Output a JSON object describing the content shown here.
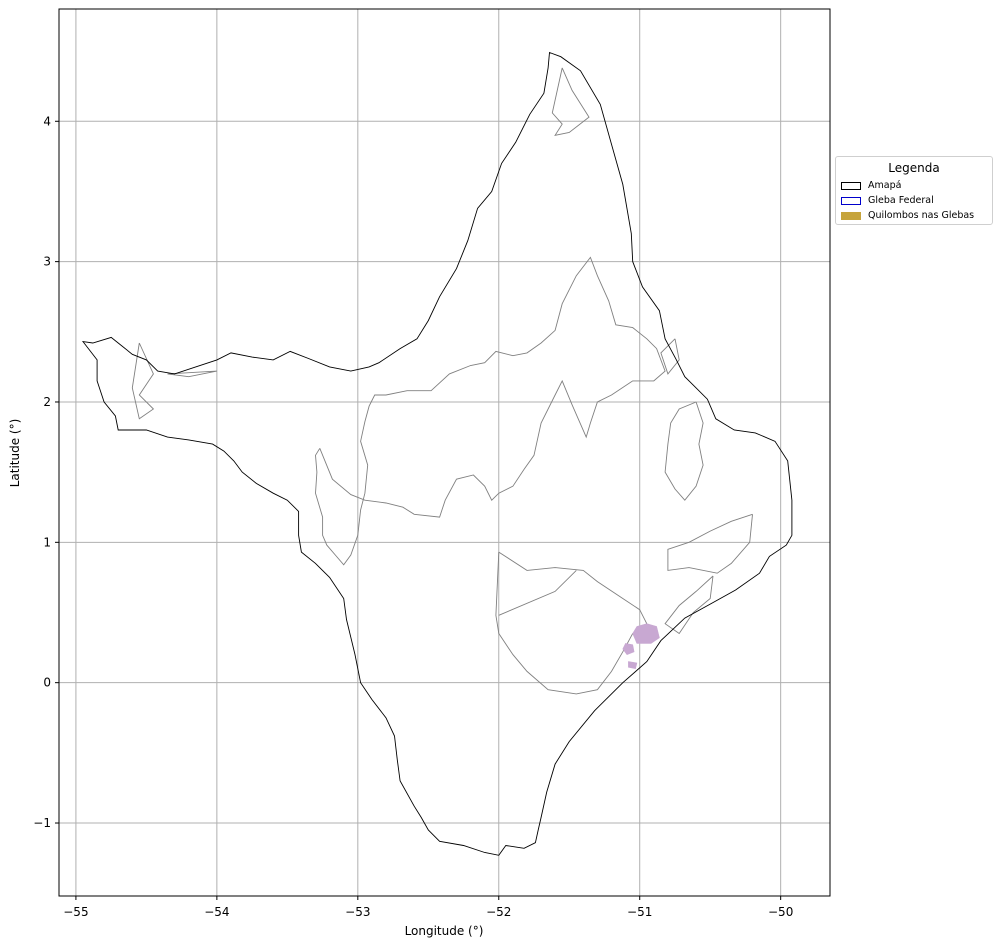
{
  "chart_data": {
    "type": "map",
    "xlabel": "Longitude (°)",
    "ylabel": "Latitude (°)",
    "xlim": [
      -55.12,
      -49.65
    ],
    "ylim": [
      -1.52,
      4.8
    ],
    "xticks": [
      -55,
      -54,
      -53,
      -52,
      -51,
      -50
    ],
    "xtick_labels": [
      "−55",
      "−54",
      "−53",
      "−52",
      "−51",
      "−50"
    ],
    "yticks": [
      -1,
      0,
      1,
      2,
      3,
      4
    ],
    "ytick_labels": [
      "−1",
      "0",
      "1",
      "2",
      "3",
      "4"
    ],
    "grid": true,
    "legend": {
      "title": "Legenda",
      "placement": "right, outside plot",
      "entries": [
        {
          "label": "Amapá",
          "edge": "#000000",
          "fill": "#ffffff"
        },
        {
          "label": "Gleba Federal",
          "edge": "#0000cc",
          "fill": "#ffffff"
        },
        {
          "label": "Quilombos nas Glebas",
          "edge": "#c6a43c",
          "fill": "#c6a43c"
        }
      ]
    },
    "colors": {
      "state_outline": "#000000",
      "gleba_outline": "#808080",
      "quilombo_fill": "#c8a8d2",
      "grid": "#b0b0b0"
    },
    "layers": {
      "amapa_outline": [
        [
          -51.64,
          4.49
        ],
        [
          -51.56,
          4.46
        ],
        [
          -51.42,
          4.36
        ],
        [
          -51.28,
          4.12
        ],
        [
          -51.19,
          3.8
        ],
        [
          -51.12,
          3.55
        ],
        [
          -51.06,
          3.2
        ],
        [
          -51.05,
          3.0
        ],
        [
          -50.98,
          2.82
        ],
        [
          -50.86,
          2.65
        ],
        [
          -50.82,
          2.45
        ],
        [
          -50.74,
          2.3
        ],
        [
          -50.68,
          2.18
        ],
        [
          -50.6,
          2.1
        ],
        [
          -50.52,
          2.02
        ],
        [
          -50.46,
          1.88
        ],
        [
          -50.33,
          1.8
        ],
        [
          -50.18,
          1.78
        ],
        [
          -50.04,
          1.72
        ],
        [
          -49.95,
          1.58
        ],
        [
          -49.92,
          1.3
        ],
        [
          -49.92,
          1.05
        ],
        [
          -49.96,
          0.98
        ],
        [
          -50.08,
          0.9
        ],
        [
          -50.15,
          0.78
        ],
        [
          -50.32,
          0.66
        ],
        [
          -50.5,
          0.56
        ],
        [
          -50.68,
          0.46
        ],
        [
          -50.85,
          0.3
        ],
        [
          -50.95,
          0.15
        ],
        [
          -51.12,
          0.0
        ],
        [
          -51.32,
          -0.2
        ],
        [
          -51.5,
          -0.42
        ],
        [
          -51.6,
          -0.58
        ],
        [
          -51.66,
          -0.78
        ],
        [
          -51.7,
          -0.96
        ],
        [
          -51.72,
          -1.05
        ],
        [
          -51.74,
          -1.14
        ],
        [
          -51.82,
          -1.18
        ],
        [
          -51.95,
          -1.16
        ],
        [
          -52.0,
          -1.23
        ],
        [
          -52.1,
          -1.21
        ],
        [
          -52.25,
          -1.16
        ],
        [
          -52.42,
          -1.13
        ],
        [
          -52.5,
          -1.05
        ],
        [
          -52.55,
          -0.96
        ],
        [
          -52.6,
          -0.88
        ],
        [
          -52.7,
          -0.7
        ],
        [
          -52.72,
          -0.55
        ],
        [
          -52.74,
          -0.38
        ],
        [
          -52.8,
          -0.25
        ],
        [
          -52.9,
          -0.12
        ],
        [
          -52.98,
          0.0
        ],
        [
          -53.02,
          0.2
        ],
        [
          -53.08,
          0.45
        ],
        [
          -53.1,
          0.6
        ],
        [
          -53.2,
          0.75
        ],
        [
          -53.3,
          0.85
        ],
        [
          -53.4,
          0.93
        ],
        [
          -53.42,
          1.05
        ],
        [
          -53.42,
          1.22
        ],
        [
          -53.5,
          1.3
        ],
        [
          -53.6,
          1.35
        ],
        [
          -53.72,
          1.42
        ],
        [
          -53.82,
          1.5
        ],
        [
          -53.88,
          1.58
        ],
        [
          -53.95,
          1.65
        ],
        [
          -54.03,
          1.7
        ],
        [
          -54.2,
          1.73
        ],
        [
          -54.35,
          1.75
        ],
        [
          -54.5,
          1.8
        ],
        [
          -54.7,
          1.8
        ],
        [
          -54.72,
          1.9
        ],
        [
          -54.8,
          2.0
        ],
        [
          -54.85,
          2.15
        ],
        [
          -54.85,
          2.3
        ],
        [
          -54.95,
          2.43
        ],
        [
          -54.88,
          2.42
        ],
        [
          -54.75,
          2.46
        ],
        [
          -54.7,
          2.42
        ],
        [
          -54.6,
          2.34
        ],
        [
          -54.5,
          2.3
        ],
        [
          -54.42,
          2.22
        ],
        [
          -54.3,
          2.2
        ],
        [
          -54.15,
          2.25
        ],
        [
          -54.0,
          2.3
        ],
        [
          -53.9,
          2.35
        ],
        [
          -53.75,
          2.32
        ],
        [
          -53.6,
          2.3
        ],
        [
          -53.48,
          2.36
        ],
        [
          -53.35,
          2.31
        ],
        [
          -53.2,
          2.25
        ],
        [
          -53.05,
          2.22
        ],
        [
          -52.92,
          2.25
        ],
        [
          -52.85,
          2.28
        ],
        [
          -52.7,
          2.38
        ],
        [
          -52.58,
          2.45
        ],
        [
          -52.5,
          2.58
        ],
        [
          -52.42,
          2.75
        ],
        [
          -52.3,
          2.95
        ],
        [
          -52.22,
          3.15
        ],
        [
          -52.15,
          3.38
        ],
        [
          -52.05,
          3.5
        ],
        [
          -51.98,
          3.7
        ],
        [
          -51.88,
          3.85
        ],
        [
          -51.78,
          4.05
        ],
        [
          -51.68,
          4.2
        ],
        [
          -51.65,
          4.38
        ],
        [
          -51.64,
          4.49
        ]
      ],
      "glebas": [
        [
          [
            -51.55,
            4.38
          ],
          [
            -51.48,
            4.22
          ],
          [
            -51.36,
            4.03
          ],
          [
            -51.5,
            3.92
          ],
          [
            -51.6,
            3.9
          ],
          [
            -51.55,
            3.98
          ],
          [
            -51.62,
            4.06
          ],
          [
            -51.55,
            4.38
          ]
        ],
        [
          [
            -54.55,
            2.42
          ],
          [
            -54.45,
            2.2
          ],
          [
            -54.55,
            2.05
          ],
          [
            -54.45,
            1.95
          ],
          [
            -54.55,
            1.88
          ],
          [
            -54.6,
            2.1
          ],
          [
            -54.55,
            2.42
          ]
        ],
        [
          [
            -54.0,
            2.22
          ],
          [
            -54.2,
            2.18
          ],
          [
            -54.35,
            2.2
          ],
          [
            -54.0,
            2.22
          ]
        ],
        [
          [
            -53.27,
            1.67
          ],
          [
            -53.3,
            1.62
          ],
          [
            -53.29,
            1.5
          ],
          [
            -53.3,
            1.35
          ],
          [
            -53.25,
            1.18
          ],
          [
            -53.25,
            1.05
          ],
          [
            -53.22,
            0.98
          ],
          [
            -53.16,
            0.91
          ],
          [
            -53.1,
            0.84
          ],
          [
            -53.05,
            0.91
          ],
          [
            -53.0,
            1.05
          ],
          [
            -52.98,
            1.23
          ],
          [
            -52.95,
            1.35
          ],
          [
            -52.93,
            1.55
          ],
          [
            -52.98,
            1.72
          ],
          [
            -52.95,
            1.86
          ],
          [
            -52.92,
            1.97
          ],
          [
            -52.88,
            2.05
          ],
          [
            -52.8,
            2.05
          ],
          [
            -52.65,
            2.08
          ],
          [
            -52.48,
            2.08
          ],
          [
            -52.35,
            2.2
          ],
          [
            -52.2,
            2.26
          ],
          [
            -52.1,
            2.28
          ],
          [
            -52.02,
            2.36
          ],
          [
            -51.9,
            2.33
          ],
          [
            -51.8,
            2.35
          ],
          [
            -51.7,
            2.42
          ],
          [
            -51.6,
            2.51
          ],
          [
            -51.55,
            2.7
          ],
          [
            -51.45,
            2.9
          ],
          [
            -51.35,
            3.03
          ],
          [
            -51.3,
            2.9
          ],
          [
            -51.22,
            2.72
          ],
          [
            -51.17,
            2.55
          ],
          [
            -51.05,
            2.53
          ],
          [
            -50.95,
            2.45
          ],
          [
            -50.88,
            2.38
          ],
          [
            -50.82,
            2.22
          ],
          [
            -50.9,
            2.15
          ],
          [
            -51.05,
            2.15
          ],
          [
            -51.2,
            2.05
          ],
          [
            -51.3,
            2.0
          ],
          [
            -51.35,
            1.85
          ],
          [
            -51.38,
            1.75
          ],
          [
            -51.48,
            1.98
          ],
          [
            -51.55,
            2.15
          ],
          [
            -51.6,
            2.05
          ],
          [
            -51.7,
            1.85
          ],
          [
            -51.75,
            1.62
          ],
          [
            -51.82,
            1.52
          ],
          [
            -51.9,
            1.4
          ],
          [
            -52.0,
            1.35
          ],
          [
            -52.05,
            1.3
          ],
          [
            -52.1,
            1.4
          ],
          [
            -52.18,
            1.48
          ],
          [
            -52.3,
            1.45
          ],
          [
            -52.38,
            1.3
          ],
          [
            -52.42,
            1.18
          ],
          [
            -52.6,
            1.2
          ],
          [
            -52.68,
            1.25
          ],
          [
            -52.8,
            1.28
          ],
          [
            -52.95,
            1.3
          ],
          [
            -53.05,
            1.34
          ],
          [
            -53.18,
            1.45
          ],
          [
            -53.27,
            1.67
          ]
        ],
        [
          [
            -52.0,
            0.93
          ],
          [
            -51.8,
            0.8
          ],
          [
            -51.6,
            0.82
          ],
          [
            -51.4,
            0.8
          ],
          [
            -51.3,
            0.72
          ],
          [
            -51.12,
            0.6
          ],
          [
            -51.0,
            0.52
          ],
          [
            -50.95,
            0.42
          ],
          [
            -51.05,
            0.35
          ],
          [
            -51.12,
            0.22
          ],
          [
            -51.2,
            0.08
          ],
          [
            -51.3,
            -0.05
          ],
          [
            -51.45,
            -0.08
          ],
          [
            -51.65,
            -0.05
          ],
          [
            -51.8,
            0.08
          ],
          [
            -51.9,
            0.2
          ],
          [
            -52.0,
            0.35
          ],
          [
            -52.02,
            0.48
          ],
          [
            -52.0,
            0.93
          ]
        ],
        [
          [
            -52.0,
            0.48
          ],
          [
            -51.6,
            0.65
          ],
          [
            -51.45,
            0.8
          ]
        ],
        [
          [
            -50.6,
            2.0
          ],
          [
            -50.55,
            1.85
          ],
          [
            -50.58,
            1.7
          ],
          [
            -50.55,
            1.55
          ],
          [
            -50.6,
            1.4
          ],
          [
            -50.68,
            1.3
          ],
          [
            -50.75,
            1.38
          ],
          [
            -50.82,
            1.5
          ],
          [
            -50.8,
            1.7
          ],
          [
            -50.78,
            1.85
          ],
          [
            -50.72,
            1.95
          ],
          [
            -50.6,
            2.0
          ]
        ],
        [
          [
            -50.2,
            1.2
          ],
          [
            -50.35,
            1.15
          ],
          [
            -50.5,
            1.08
          ],
          [
            -50.65,
            1.0
          ],
          [
            -50.8,
            0.95
          ],
          [
            -50.8,
            0.8
          ],
          [
            -50.65,
            0.82
          ],
          [
            -50.45,
            0.78
          ],
          [
            -50.35,
            0.85
          ],
          [
            -50.22,
            1.0
          ],
          [
            -50.2,
            1.2
          ]
        ],
        [
          [
            -50.48,
            0.76
          ],
          [
            -50.6,
            0.65
          ],
          [
            -50.72,
            0.55
          ],
          [
            -50.82,
            0.42
          ],
          [
            -50.72,
            0.35
          ],
          [
            -50.62,
            0.5
          ],
          [
            -50.5,
            0.6
          ],
          [
            -50.48,
            0.76
          ]
        ],
        [
          [
            -50.75,
            2.45
          ],
          [
            -50.72,
            2.3
          ],
          [
            -50.8,
            2.2
          ],
          [
            -50.85,
            2.35
          ],
          [
            -50.75,
            2.45
          ]
        ]
      ],
      "quilombos": [
        [
          [
            -50.95,
            0.42
          ],
          [
            -50.88,
            0.4
          ],
          [
            -50.86,
            0.32
          ],
          [
            -50.92,
            0.28
          ],
          [
            -51.02,
            0.28
          ],
          [
            -51.05,
            0.35
          ],
          [
            -51.02,
            0.4
          ],
          [
            -50.95,
            0.42
          ]
        ],
        [
          [
            -51.1,
            0.28
          ],
          [
            -51.05,
            0.27
          ],
          [
            -51.04,
            0.22
          ],
          [
            -51.09,
            0.2
          ],
          [
            -51.12,
            0.24
          ],
          [
            -51.1,
            0.28
          ]
        ],
        [
          [
            -51.08,
            0.15
          ],
          [
            -51.02,
            0.14
          ],
          [
            -51.03,
            0.1
          ],
          [
            -51.08,
            0.11
          ],
          [
            -51.08,
            0.15
          ]
        ]
      ]
    }
  }
}
